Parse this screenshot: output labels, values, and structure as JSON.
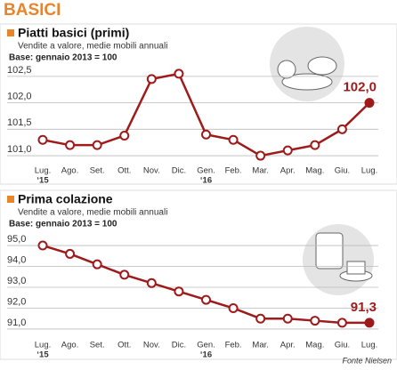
{
  "header": "BASICI",
  "source": "Fonte Nielsen",
  "chart_data": [
    {
      "type": "line",
      "title": "Piatti basici (primi)",
      "subtitle": "Vendite a valore, medie mobili annuali",
      "note": "Base: gennaio 2013 = 100",
      "categories": [
        "Lug.",
        "Ago.",
        "Set.",
        "Ott.",
        "Nov.",
        "Dic.",
        "Gen.",
        "Feb.",
        "Mar.",
        "Apr.",
        "Mag.",
        "Giu.",
        "Lug."
      ],
      "x_sublabels": [
        "‘15",
        null,
        null,
        null,
        null,
        null,
        "‘16",
        null,
        null,
        null,
        null,
        null,
        null
      ],
      "values": [
        101.3,
        101.2,
        101.2,
        101.38,
        102.45,
        102.55,
        101.4,
        101.3,
        101.0,
        101.1,
        101.2,
        101.5,
        102.0
      ],
      "value_labels": [
        null,
        null,
        null,
        null,
        null,
        null,
        null,
        null,
        null,
        null,
        null,
        null,
        "102,0"
      ],
      "color": "#9e1b1b",
      "ylim": [
        100.9,
        102.7
      ],
      "yticks": [
        {
          "value": 101,
          "label": "101,0"
        },
        {
          "value": 101.5,
          "label": "101,5"
        },
        {
          "value": 102,
          "label": "102,0"
        },
        {
          "value": 102.5,
          "label": "102,5"
        }
      ],
      "grid": true
    },
    {
      "type": "line",
      "title": "Prima colazione",
      "subtitle": "Vendite a valore, medie mobili annuali",
      "note": "Base: gennaio 2013 = 100",
      "categories": [
        "Lug.",
        "Ago.",
        "Set.",
        "Ott.",
        "Nov.",
        "Dic.",
        "Gen.",
        "Feb.",
        "Mar.",
        "Apr.",
        "Mag.",
        "Giu.",
        "Lug."
      ],
      "x_sublabels": [
        "‘15",
        null,
        null,
        null,
        null,
        null,
        "‘16",
        null,
        null,
        null,
        null,
        null,
        null
      ],
      "values": [
        95.0,
        94.6,
        94.1,
        93.6,
        93.2,
        92.8,
        92.4,
        92.0,
        91.5,
        91.5,
        91.4,
        91.3,
        91.3
      ],
      "value_labels": [
        null,
        null,
        null,
        null,
        null,
        null,
        null,
        null,
        null,
        null,
        null,
        null,
        "91,3"
      ],
      "color": "#9e1b1b",
      "ylim": [
        90.7,
        95.3
      ],
      "yticks": [
        {
          "value": 91,
          "label": "91,0"
        },
        {
          "value": 92,
          "label": "92,0"
        },
        {
          "value": 93,
          "label": "93,0"
        },
        {
          "value": 94,
          "label": "94,0"
        },
        {
          "value": 95,
          "label": "95,0"
        }
      ],
      "grid": true
    }
  ]
}
